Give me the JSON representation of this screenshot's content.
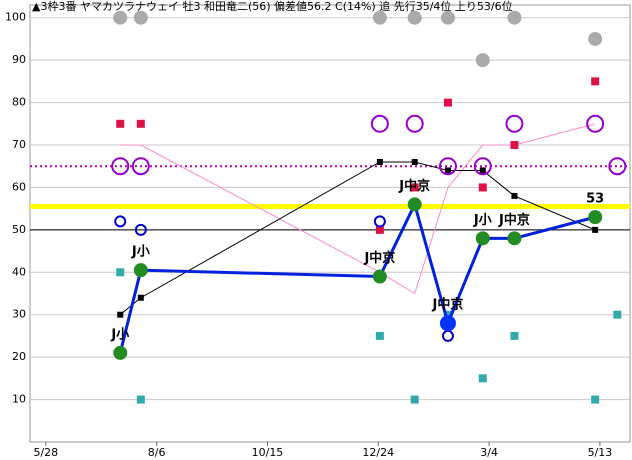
{
  "chart_data": {
    "type": "line",
    "title": "▲3枠3番 ヤマカツラナウェイ 牡3 和田竜二(56) 偏差値56.2 C(14%) 追 先行35/4位 上り53/6位",
    "xlim": [
      -10,
      369
    ],
    "ylim": [
      0,
      103
    ],
    "xticks": [
      {
        "value": 0,
        "label": "5/28"
      },
      {
        "value": 70,
        "label": "8/6"
      },
      {
        "value": 140,
        "label": "10/15"
      },
      {
        "value": 210,
        "label": "12/24"
      },
      {
        "value": 280,
        "label": "3/4"
      },
      {
        "value": 350,
        "label": "5/13"
      }
    ],
    "yticks": [
      10,
      20,
      30,
      40,
      50,
      60,
      70,
      80,
      90,
      100
    ],
    "grid": true,
    "reference_lines": [
      {
        "value": 50,
        "color": "#000000",
        "dashed": false,
        "width": 1
      },
      {
        "value": 55.5,
        "color": "#ffff00",
        "dashed": false,
        "width": 5
      },
      {
        "value": 65,
        "color": "#b000b0",
        "dashed": true,
        "width": 2
      }
    ],
    "series": [
      {
        "style": "line",
        "color": "#ff88cc",
        "width": 1,
        "x": [
          47,
          60,
          211,
          233,
          254,
          276,
          296,
          347
        ],
        "values": [
          70,
          70,
          40,
          35,
          60,
          70,
          70,
          75
        ]
      },
      {
        "style": "line",
        "color": "#000000",
        "width": 1,
        "marker": "square",
        "marker_size": 3,
        "x": [
          47,
          60,
          211,
          233,
          254,
          276,
          296,
          347
        ],
        "values": [
          30,
          34,
          66,
          66,
          64,
          64,
          58,
          50
        ]
      },
      {
        "style": "markers",
        "color": "#aaaaaa",
        "marker": "circle",
        "marker_size": 7,
        "x": [
          47,
          60,
          211,
          233,
          254,
          276,
          296,
          347
        ],
        "values": [
          100,
          100,
          100,
          100,
          100,
          90,
          100,
          95
        ]
      },
      {
        "style": "markers",
        "color": "#dd1144",
        "marker": "square",
        "marker_size": 4,
        "x": [
          47,
          60,
          211,
          233,
          254,
          276,
          296,
          347
        ],
        "values": [
          75,
          75,
          50,
          60,
          80,
          60,
          70,
          85
        ]
      },
      {
        "style": "markers",
        "color": "#33aaaa",
        "marker": "square",
        "marker_size": 4,
        "x": [
          47,
          60,
          211,
          233,
          254,
          276,
          296,
          347,
          361
        ],
        "values": [
          40,
          10,
          25,
          10,
          30,
          15,
          25,
          10,
          30
        ]
      },
      {
        "style": "markers",
        "color": "#9900cc",
        "marker": "hollow-circle",
        "marker_size": 8,
        "x": [
          47,
          60,
          211,
          233,
          254,
          276,
          296,
          347,
          361
        ],
        "values": [
          65,
          65,
          75,
          75,
          65,
          65,
          75,
          75,
          65
        ]
      },
      {
        "style": "markers",
        "color": "#0000cc",
        "marker": "hollow-circle",
        "marker_size": 5,
        "x": [
          47,
          60,
          211,
          254
        ],
        "values": [
          52,
          50,
          52,
          25
        ]
      },
      {
        "style": "line",
        "color": "#0022dd",
        "width": 3,
        "marker": "circle",
        "marker_size": 7,
        "marker_colors": [
          "#228b22",
          "#228b22",
          "#228b22",
          "#228b22",
          "#0033ff",
          "#228b22",
          "#228b22",
          "#228b22"
        ],
        "x": [
          47,
          60,
          211,
          233,
          254,
          276,
          296,
          347
        ],
        "values": [
          21,
          40.5,
          39,
          56,
          28,
          48,
          48,
          53
        ],
        "point_labels": [
          "J小",
          "J小",
          "J中京",
          "J中京",
          "J中京",
          "J小",
          "J中京",
          "53"
        ]
      }
    ]
  }
}
